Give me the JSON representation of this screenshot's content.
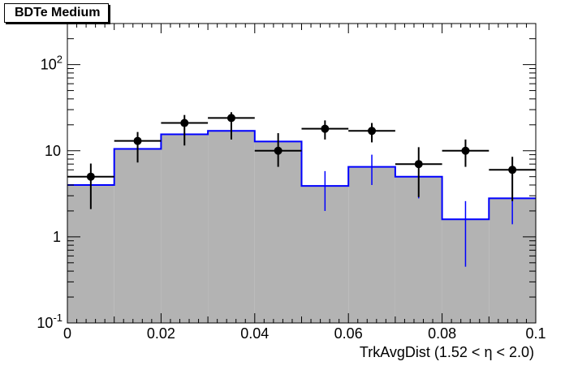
{
  "chart_data": {
    "type": "bar",
    "title": "BDTe Medium",
    "xlabel": "TrkAvgDist (1.52 <  η < 2.0)",
    "ylabel": "",
    "log_y": true,
    "xlim": [
      0,
      0.1
    ],
    "ylim": [
      0.1,
      300
    ],
    "x_tick_labels": [
      "0",
      "0.02",
      "0.04",
      "0.06",
      "0.08",
      "0.1"
    ],
    "x_tick_values": [
      0,
      0.02,
      0.04,
      0.06,
      0.08,
      0.1
    ],
    "y_tick_labels": [
      {
        "value": 0.1,
        "base": "10",
        "exp": "-1"
      },
      {
        "value": 1,
        "base": "1",
        "exp": ""
      },
      {
        "value": 10,
        "base": "10",
        "exp": ""
      },
      {
        "value": 100,
        "base": "10",
        "exp": "2"
      }
    ],
    "bin_edges": [
      0,
      0.01,
      0.02,
      0.03,
      0.04,
      0.05,
      0.06,
      0.07,
      0.08,
      0.09,
      0.1
    ],
    "series": [
      {
        "kind": "filled-histogram",
        "values": [
          4.0,
          10.5,
          15.5,
          17.0,
          12.8,
          3.9,
          6.5,
          5.0,
          1.6,
          2.8
        ],
        "color": "#b3b3b3",
        "line_color": "#0000ff",
        "errors_low": [
          null,
          null,
          null,
          null,
          null,
          2.0,
          4.0,
          2.8,
          0.45,
          1.4
        ],
        "errors_high": [
          null,
          null,
          null,
          null,
          null,
          5.8,
          9.0,
          7.5,
          2.6,
          5.5
        ]
      },
      {
        "kind": "points",
        "values": [
          5.0,
          13.0,
          21.0,
          24.0,
          10.0,
          18.0,
          17.0,
          7.0,
          10.0,
          6.0
        ],
        "errors_low": [
          2.1,
          7.3,
          11.5,
          13.5,
          6.5,
          13.5,
          12.5,
          2.9,
          6.5,
          2.6
        ],
        "errors_high": [
          7.1,
          16.5,
          26.0,
          28.0,
          16.0,
          22.5,
          21.0,
          11.0,
          13.5,
          8.5
        ],
        "color": "#000000"
      }
    ]
  }
}
